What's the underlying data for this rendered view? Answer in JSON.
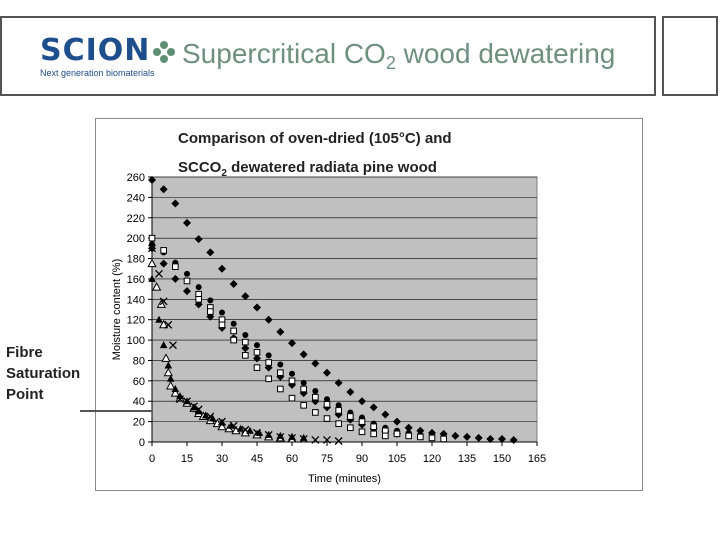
{
  "slide": {
    "logo_word": "SCION",
    "logo_tagline": "Next generation biomaterials",
    "title_main": "Supercritical CO",
    "title_sub": "2",
    "title_rest": " wood dewatering"
  },
  "annotation": {
    "line1": "Fibre",
    "line2": "Saturation",
    "line3": "Point"
  },
  "colors": {
    "brand": "#1f4e8c",
    "title": "#6f8f7f",
    "plot_bg": "#c0c0c0",
    "markers": "#000000"
  },
  "chart_data": {
    "type": "scatter",
    "title_line1": "Comparison of oven-dried (105°C) and",
    "title_line2_main": "SCCO",
    "title_line2_sub": "2",
    "title_line2_rest": " dewatered radiata pine wood",
    "xlabel": "Time (minutes)",
    "ylabel": "Moisture content (%)",
    "xlim": [
      0,
      165
    ],
    "ylim": [
      0,
      260
    ],
    "xticks": [
      0,
      15,
      30,
      45,
      60,
      75,
      90,
      105,
      120,
      135,
      150,
      165
    ],
    "yticks": [
      0,
      20,
      40,
      60,
      80,
      100,
      120,
      140,
      160,
      180,
      200,
      220,
      240,
      260
    ],
    "grid": true,
    "series": [
      {
        "marker": "diamond",
        "points": [
          [
            0,
            257
          ],
          [
            5,
            248
          ],
          [
            10,
            234
          ],
          [
            15,
            215
          ],
          [
            20,
            199
          ],
          [
            25,
            186
          ],
          [
            30,
            170
          ],
          [
            35,
            155
          ],
          [
            40,
            143
          ],
          [
            45,
            132
          ],
          [
            50,
            120
          ],
          [
            55,
            108
          ],
          [
            60,
            97
          ],
          [
            65,
            86
          ],
          [
            70,
            77
          ],
          [
            75,
            68
          ],
          [
            80,
            58
          ],
          [
            85,
            49
          ],
          [
            90,
            40
          ],
          [
            95,
            34
          ],
          [
            100,
            27
          ],
          [
            105,
            20
          ],
          [
            110,
            14
          ],
          [
            115,
            11
          ],
          [
            120,
            9
          ],
          [
            125,
            8
          ],
          [
            130,
            6
          ],
          [
            135,
            5
          ],
          [
            140,
            4
          ],
          [
            145,
            3
          ],
          [
            150,
            3
          ],
          [
            155,
            2
          ]
        ]
      },
      {
        "marker": "circle",
        "points": [
          [
            0,
            194
          ],
          [
            5,
            186
          ],
          [
            10,
            176
          ],
          [
            15,
            165
          ],
          [
            20,
            152
          ],
          [
            25,
            139
          ],
          [
            30,
            127
          ],
          [
            35,
            116
          ],
          [
            40,
            105
          ],
          [
            45,
            95
          ],
          [
            50,
            85
          ],
          [
            55,
            76
          ],
          [
            60,
            67
          ],
          [
            65,
            58
          ],
          [
            70,
            50
          ],
          [
            75,
            42
          ],
          [
            80,
            36
          ],
          [
            85,
            29
          ],
          [
            90,
            24
          ],
          [
            95,
            18
          ],
          [
            100,
            14
          ],
          [
            105,
            11
          ],
          [
            110,
            9
          ],
          [
            115,
            7
          ],
          [
            120,
            6
          ],
          [
            125,
            5
          ]
        ]
      },
      {
        "marker": "diamond",
        "points": [
          [
            0,
            190
          ],
          [
            5,
            175
          ],
          [
            10,
            160
          ],
          [
            15,
            148
          ],
          [
            20,
            135
          ],
          [
            25,
            123
          ],
          [
            30,
            112
          ],
          [
            35,
            102
          ],
          [
            40,
            92
          ],
          [
            45,
            82
          ],
          [
            50,
            73
          ],
          [
            55,
            64
          ],
          [
            60,
            56
          ],
          [
            65,
            48
          ],
          [
            70,
            40
          ],
          [
            75,
            34
          ],
          [
            80,
            27
          ],
          [
            85,
            22
          ],
          [
            90,
            17
          ],
          [
            95,
            13
          ],
          [
            100,
            10
          ],
          [
            105,
            8
          ]
        ]
      },
      {
        "marker": "square",
        "points": [
          [
            0,
            200
          ],
          [
            5,
            188
          ],
          [
            10,
            172
          ],
          [
            15,
            158
          ],
          [
            20,
            145
          ],
          [
            25,
            132
          ],
          [
            30,
            120
          ],
          [
            35,
            109
          ],
          [
            40,
            98
          ],
          [
            45,
            88
          ],
          [
            50,
            78
          ],
          [
            55,
            68
          ],
          [
            60,
            60
          ],
          [
            65,
            52
          ],
          [
            70,
            44
          ],
          [
            75,
            37
          ],
          [
            80,
            31
          ],
          [
            85,
            25
          ],
          [
            90,
            20
          ],
          [
            95,
            15
          ],
          [
            100,
            11
          ],
          [
            105,
            8
          ],
          [
            110,
            6
          ],
          [
            115,
            5
          ],
          [
            120,
            4
          ],
          [
            125,
            3
          ]
        ]
      },
      {
        "marker": "square",
        "points": [
          [
            20,
            140
          ],
          [
            25,
            128
          ],
          [
            30,
            115
          ],
          [
            35,
            100
          ],
          [
            40,
            85
          ],
          [
            45,
            73
          ],
          [
            50,
            62
          ],
          [
            55,
            52
          ],
          [
            60,
            43
          ],
          [
            65,
            36
          ],
          [
            70,
            29
          ],
          [
            75,
            23
          ],
          [
            80,
            18
          ],
          [
            85,
            14
          ],
          [
            90,
            10
          ],
          [
            95,
            8
          ],
          [
            100,
            6
          ]
        ]
      },
      {
        "marker": "triangle",
        "points": [
          [
            0,
            175
          ],
          [
            2,
            152
          ],
          [
            4,
            135
          ],
          [
            5,
            115
          ],
          [
            6,
            82
          ],
          [
            7,
            68
          ],
          [
            8,
            55
          ],
          [
            10,
            48
          ],
          [
            12,
            43
          ],
          [
            15,
            38
          ],
          [
            18,
            33
          ],
          [
            20,
            28
          ],
          [
            22,
            25
          ],
          [
            25,
            21
          ],
          [
            28,
            18
          ],
          [
            30,
            15
          ],
          [
            33,
            13
          ],
          [
            36,
            11
          ],
          [
            40,
            9
          ],
          [
            45,
            7
          ],
          [
            50,
            5
          ],
          [
            55,
            4
          ],
          [
            60,
            3
          ]
        ]
      },
      {
        "marker": "triangle",
        "points": [
          [
            0,
            160
          ],
          [
            3,
            120
          ],
          [
            5,
            95
          ],
          [
            7,
            75
          ],
          [
            8,
            62
          ],
          [
            10,
            52
          ],
          [
            12,
            45
          ],
          [
            15,
            40
          ],
          [
            18,
            34
          ],
          [
            20,
            30
          ],
          [
            23,
            26
          ],
          [
            26,
            23
          ],
          [
            30,
            19
          ],
          [
            34,
            16
          ],
          [
            38,
            13
          ],
          [
            42,
            11
          ],
          [
            46,
            9
          ],
          [
            50,
            7
          ],
          [
            55,
            6
          ],
          [
            60,
            5
          ],
          [
            65,
            4
          ]
        ]
      },
      {
        "marker": "cross",
        "points": [
          [
            0,
            190
          ],
          [
            3,
            165
          ],
          [
            5,
            138
          ],
          [
            7,
            115
          ],
          [
            9,
            95
          ],
          [
            12,
            42
          ],
          [
            15,
            40
          ],
          [
            18,
            35
          ],
          [
            20,
            32
          ],
          [
            25,
            25
          ],
          [
            30,
            20
          ],
          [
            35,
            16
          ],
          [
            40,
            12
          ],
          [
            45,
            9
          ],
          [
            50,
            7
          ],
          [
            55,
            5
          ],
          [
            60,
            4
          ],
          [
            65,
            3
          ],
          [
            70,
            2
          ],
          [
            75,
            2
          ],
          [
            80,
            1
          ]
        ]
      }
    ]
  }
}
